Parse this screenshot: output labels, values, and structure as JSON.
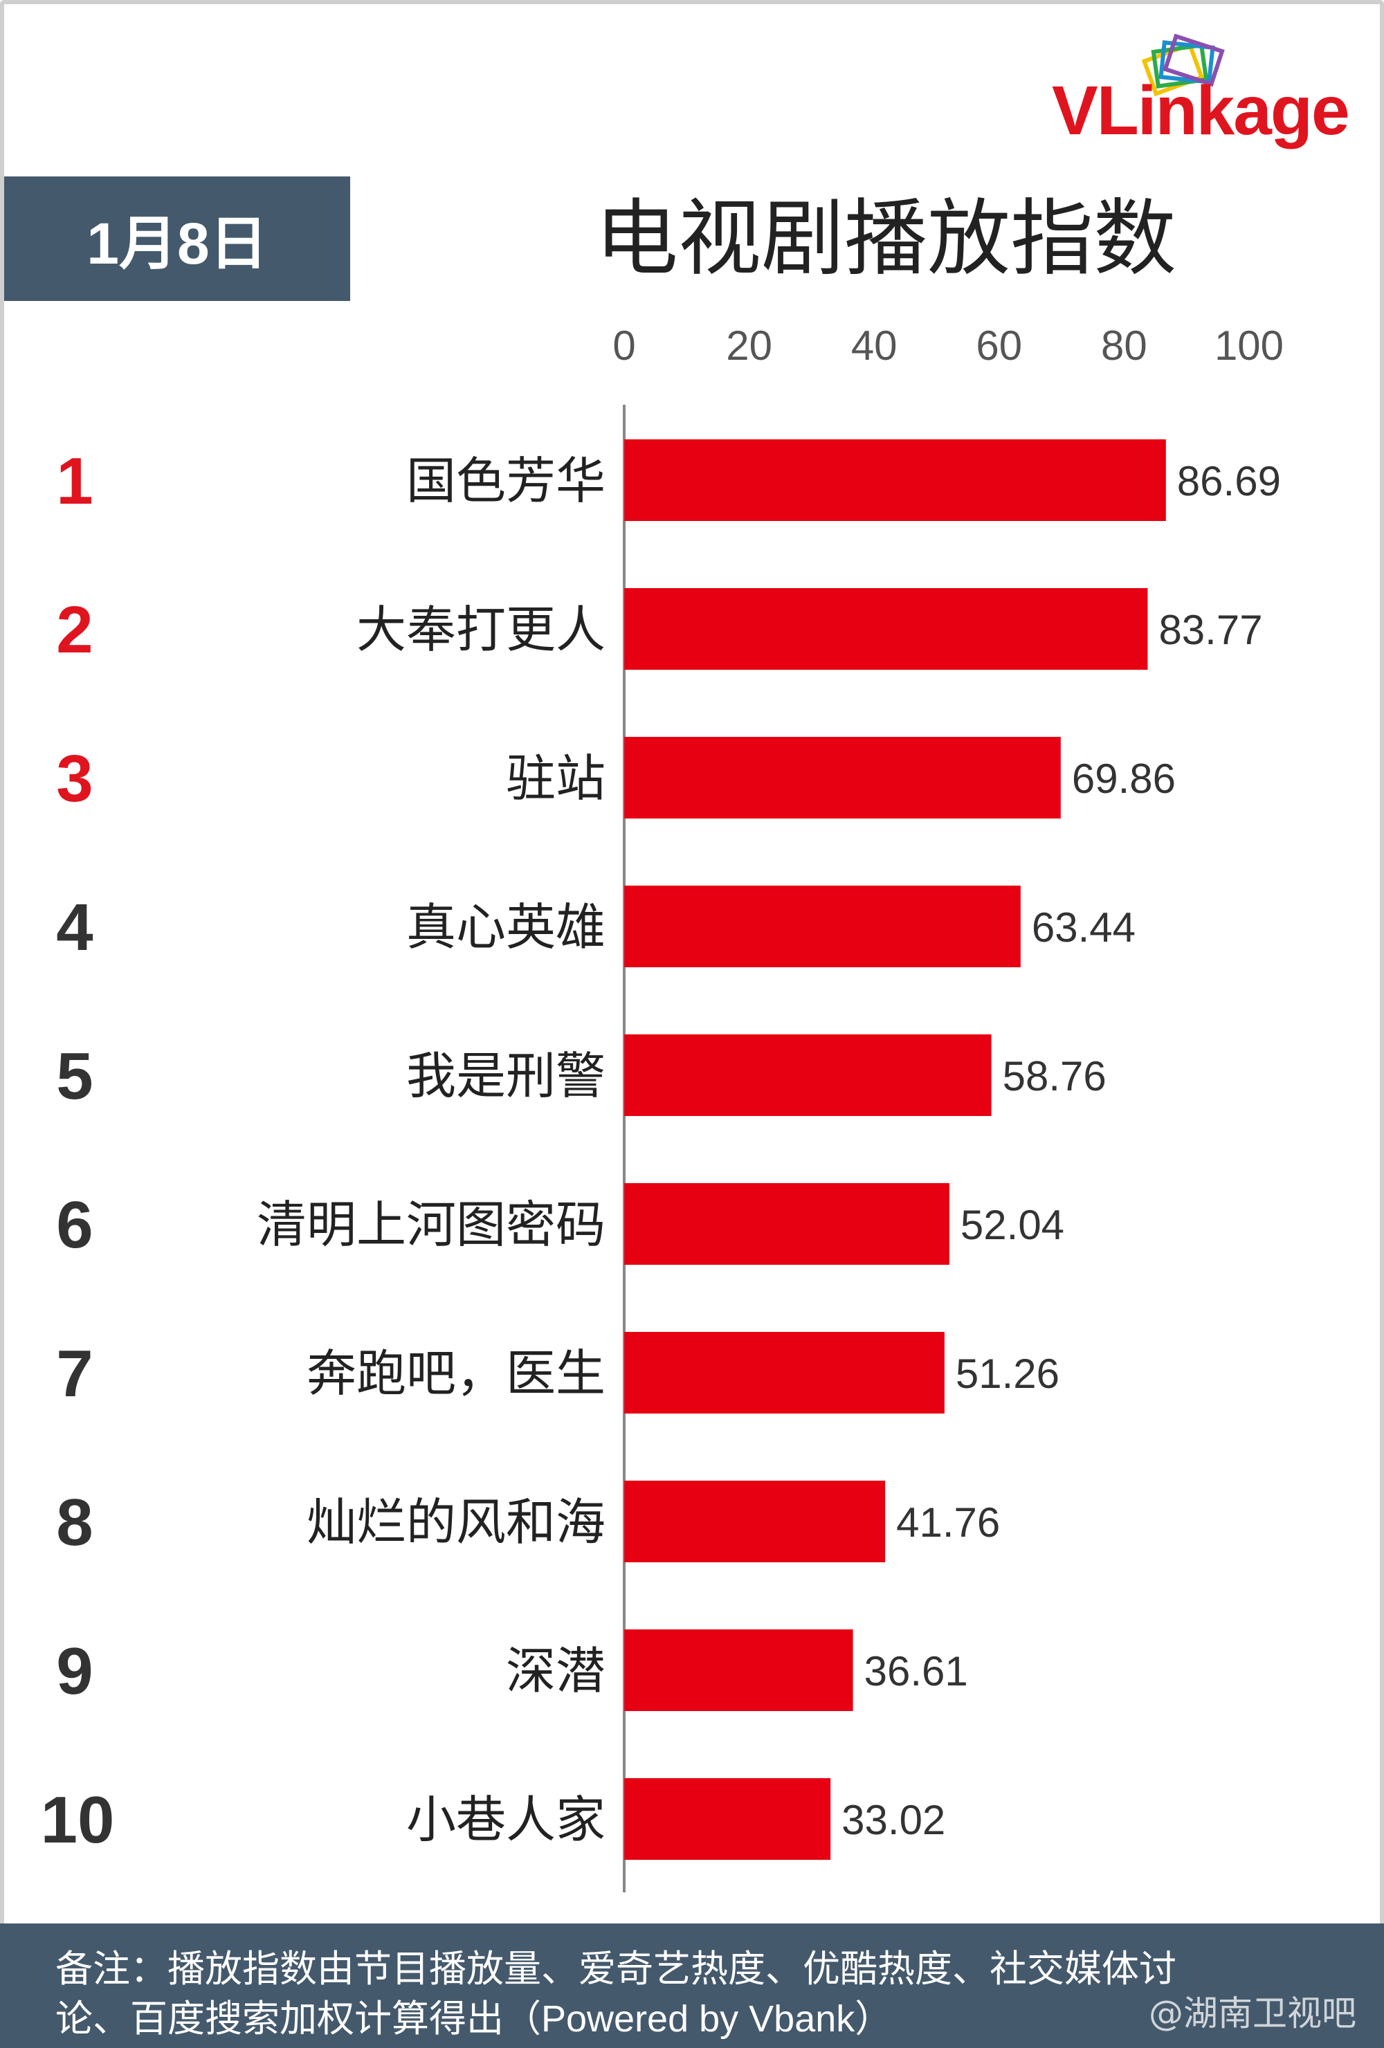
{
  "header": {
    "date_label": "1月8日",
    "title": "电视剧播放指数",
    "logo_text": "VLinkage"
  },
  "chart_data": {
    "type": "bar",
    "orientation": "horizontal",
    "title": "电视剧播放指数",
    "xlim": [
      0,
      100
    ],
    "ticks": [
      "0",
      "20",
      "40",
      "60",
      "80",
      "100"
    ],
    "grid": false,
    "bar_color": "#e60012",
    "ranks": [
      "1",
      "2",
      "3",
      "4",
      "5",
      "6",
      "7",
      "8",
      "9",
      "10"
    ],
    "categories": [
      "国色芳华",
      "大奉打更人",
      "驻站",
      "真心英雄",
      "我是刑警",
      "清明上河图密码",
      "奔跑吧，医生",
      "灿烂的风和海",
      "深潜",
      "小巷人家"
    ],
    "values": [
      86.69,
      83.77,
      69.86,
      63.44,
      58.76,
      52.04,
      51.26,
      41.76,
      36.61,
      33.02
    ],
    "value_labels": [
      "86.69",
      "83.77",
      "69.86",
      "63.44",
      "58.76",
      "52.04",
      "51.26",
      "41.76",
      "36.61",
      "33.02"
    ],
    "top_rank_color": "#e0141e",
    "rank_color": "#333333"
  },
  "footer": {
    "note_line1": "备注：播放指数由节目播放量、爱奇艺热度、优酷热度、社交媒体讨",
    "note_line2": "论、百度搜索加权计算得出（Powered by Vbank）",
    "watermark": "@湖南卫视吧"
  }
}
